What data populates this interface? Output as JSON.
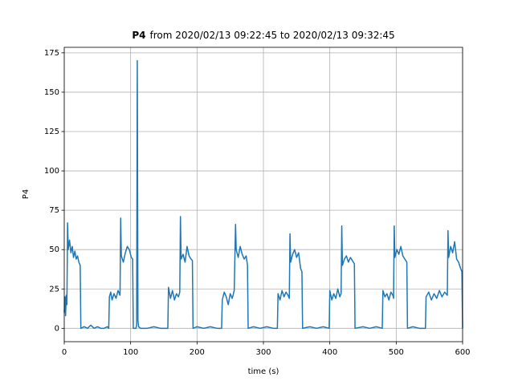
{
  "chart_data": {
    "type": "line",
    "title_name": "P4",
    "title": "from 2020/02/13 09:22:45 to 2020/02/13 09:32:45",
    "x_label": "time (s)",
    "y_label": "P4",
    "color": "#1f77b4",
    "grid": true,
    "xlim": [
      0,
      600
    ],
    "xticks": [
      0,
      100,
      200,
      300,
      400,
      500,
      600
    ],
    "ylim": [
      -8.5,
      178.5
    ],
    "yticks": [
      0,
      25,
      50,
      75,
      100,
      125,
      150,
      175
    ],
    "x": [
      0,
      1,
      2,
      3,
      4,
      5,
      6,
      8,
      10,
      12,
      14,
      16,
      18,
      20,
      22,
      24,
      25,
      30,
      35,
      40,
      45,
      50,
      55,
      60,
      65,
      67,
      68,
      70,
      72,
      75,
      78,
      81,
      84,
      85,
      86,
      89,
      92,
      95,
      98,
      101,
      103,
      104,
      108,
      109,
      110,
      111,
      112,
      115,
      125,
      135,
      145,
      156,
      157,
      160,
      163,
      166,
      169,
      172,
      174,
      175,
      176,
      179,
      182,
      185,
      188,
      191,
      193,
      194,
      200,
      210,
      220,
      230,
      237,
      238,
      241,
      244,
      247,
      250,
      253,
      256,
      258,
      259,
      262,
      265,
      268,
      271,
      274,
      276,
      277,
      285,
      295,
      305,
      315,
      321,
      322,
      325,
      328,
      331,
      334,
      337,
      339,
      340,
      341,
      344,
      347,
      350,
      353,
      356,
      358,
      359,
      370,
      380,
      390,
      399,
      400,
      403,
      406,
      409,
      412,
      415,
      417,
      418,
      419,
      422,
      425,
      428,
      431,
      434,
      437,
      438,
      450,
      460,
      470,
      479,
      480,
      483,
      486,
      489,
      492,
      495,
      496,
      497,
      498,
      501,
      504,
      507,
      510,
      513,
      516,
      517,
      525,
      535,
      544,
      545,
      549,
      553,
      557,
      561,
      565,
      569,
      573,
      577,
      578,
      579,
      582,
      585,
      588,
      591,
      594,
      597,
      599,
      600
    ],
    "values": [
      10,
      20,
      8,
      21,
      15,
      67,
      50,
      56,
      48,
      52,
      45,
      49,
      44,
      46,
      42,
      40,
      0,
      1,
      0,
      2,
      0,
      1,
      0,
      0,
      1,
      0,
      20,
      23,
      18,
      22,
      19,
      24,
      21,
      70,
      46,
      42,
      48,
      52,
      50,
      45,
      44,
      0,
      0,
      2,
      170,
      5,
      1,
      0,
      0,
      1,
      0,
      0,
      26,
      19,
      24,
      18,
      22,
      20,
      23,
      71,
      44,
      47,
      42,
      52,
      46,
      44,
      43,
      0,
      1,
      0,
      1,
      0,
      0,
      18,
      23,
      20,
      15,
      22,
      19,
      24,
      66,
      50,
      45,
      52,
      47,
      44,
      46,
      40,
      0,
      1,
      0,
      1,
      0,
      0,
      22,
      18,
      24,
      20,
      23,
      21,
      19,
      60,
      42,
      47,
      50,
      45,
      48,
      38,
      36,
      0,
      1,
      0,
      1,
      0,
      24,
      18,
      22,
      19,
      25,
      20,
      22,
      65,
      40,
      44,
      46,
      42,
      45,
      43,
      41,
      0,
      1,
      0,
      1,
      0,
      24,
      20,
      22,
      18,
      23,
      21,
      19,
      65,
      45,
      50,
      47,
      52,
      46,
      44,
      42,
      0,
      1,
      0,
      0,
      20,
      23,
      18,
      22,
      19,
      24,
      20,
      23,
      21,
      62,
      45,
      52,
      48,
      55,
      44,
      42,
      38,
      36,
      0
    ]
  }
}
